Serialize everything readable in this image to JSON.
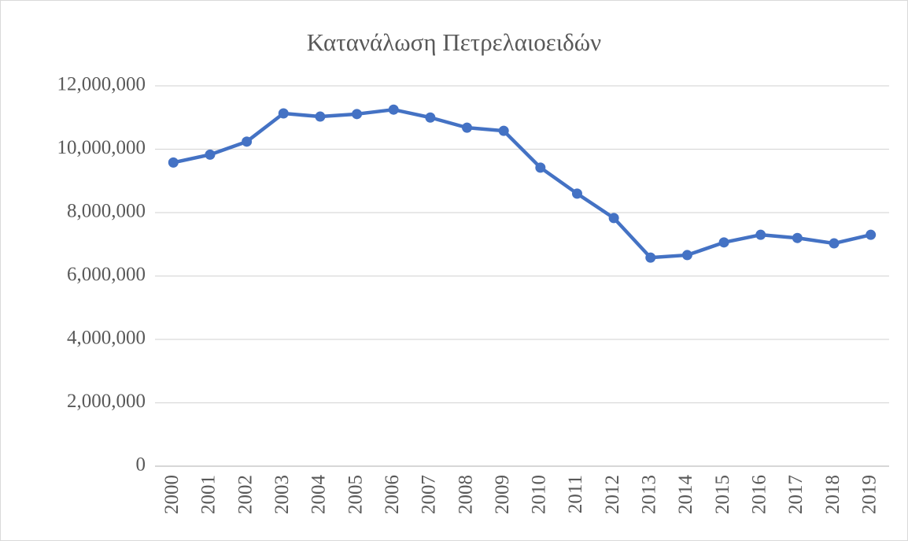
{
  "chart_data": {
    "type": "line",
    "title": "Κατανάλωση Πετρελαιοειδών",
    "categories": [
      "2000",
      "2001",
      "2002",
      "2003",
      "2004",
      "2005",
      "2006",
      "2007",
      "2008",
      "2009",
      "2010",
      "2011",
      "2012",
      "2013",
      "2014",
      "2015",
      "2016",
      "2017",
      "2018",
      "2019"
    ],
    "series": [
      {
        "name": "Κατανάλωση Πετρελαιοειδών",
        "color": "#4472c4",
        "values": [
          9580000,
          9830000,
          10240000,
          11130000,
          11030000,
          11110000,
          11250000,
          11000000,
          10680000,
          10580000,
          9420000,
          8600000,
          7830000,
          6580000,
          6660000,
          7060000,
          7300000,
          7200000,
          7030000,
          7300000
        ]
      }
    ],
    "ylim": [
      0,
      12000000
    ],
    "yticks": [
      0,
      {
        "value": 2000000,
        "label": "2,000,000"
      },
      {
        "value": 4000000,
        "label": "4,000,000"
      },
      {
        "value": 6000000,
        "label": "6,000,000"
      },
      {
        "value": 8000000,
        "label": "8,000,000"
      },
      {
        "value": 10000000,
        "label": "10,000,000"
      },
      {
        "value": 12000000,
        "label": "12,000,000"
      }
    ],
    "grid": true
  }
}
